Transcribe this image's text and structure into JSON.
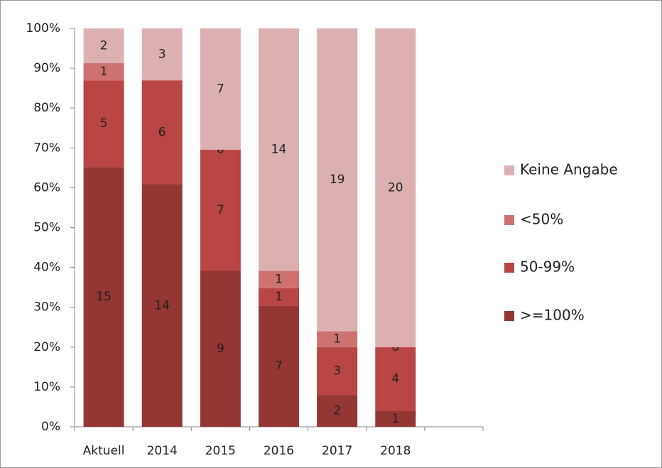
{
  "chart_data": {
    "type": "bar",
    "stacked": "percent",
    "categories": [
      "Aktuell",
      "2014",
      "2015",
      "2016",
      "2017",
      "2018",
      null
    ],
    "series": [
      {
        "name": ">=100%",
        "color": "#943634",
        "values": [
          15,
          14,
          9,
          7,
          2,
          1,
          null
        ]
      },
      {
        "name": "50-99%",
        "color": "#b94544",
        "values": [
          5,
          6,
          7,
          1,
          3,
          4,
          null
        ]
      },
      {
        "name": "<50%",
        "color": "#cd7271",
        "values": [
          1,
          null,
          0,
          1,
          1,
          0,
          null
        ]
      },
      {
        "name": "Keine Angabe",
        "color": "#dcb0b0",
        "values": [
          2,
          3,
          7,
          14,
          19,
          20,
          null
        ]
      }
    ],
    "ylim": [
      0,
      100
    ],
    "yticks": [
      {
        "value": 0,
        "label": "0%"
      },
      {
        "value": 10,
        "label": "10%"
      },
      {
        "value": 20,
        "label": "20%"
      },
      {
        "value": 30,
        "label": "30%"
      },
      {
        "value": 40,
        "label": "40%"
      },
      {
        "value": 50,
        "label": "50%"
      },
      {
        "value": 60,
        "label": "60%"
      },
      {
        "value": 70,
        "label": "70%"
      },
      {
        "value": 80,
        "label": "80%"
      },
      {
        "value": 90,
        "label": "90%"
      },
      {
        "value": 100,
        "label": "100%"
      }
    ],
    "legend": "right"
  }
}
